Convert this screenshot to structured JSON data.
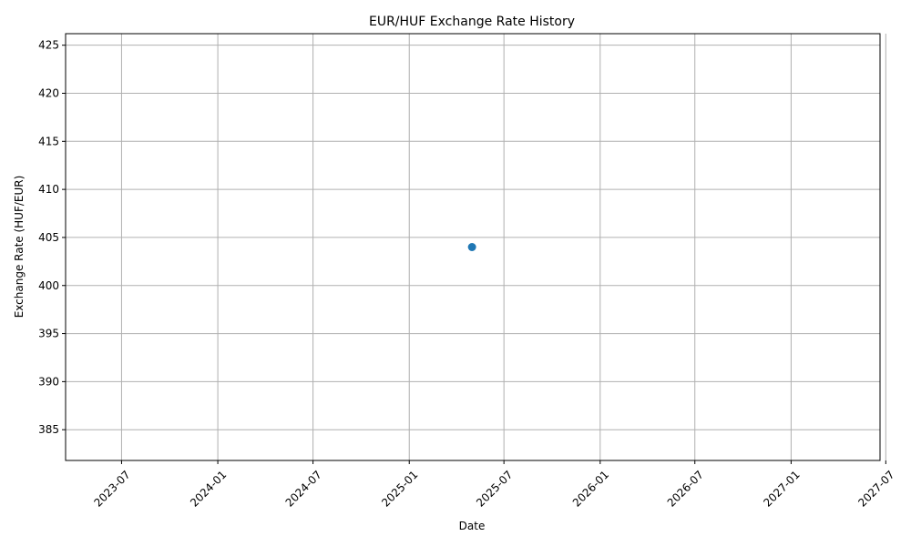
{
  "chart_data": {
    "type": "scatter",
    "title": "EUR/HUF Exchange Rate History",
    "xlabel": "Date",
    "ylabel": "Exchange Rate (HUF/EUR)",
    "x_ticks": [
      "2023-07",
      "2024-01",
      "2024-07",
      "2025-01",
      "2025-07",
      "2026-01",
      "2026-07",
      "2027-01",
      "2027-07"
    ],
    "y_ticks": [
      385,
      390,
      395,
      400,
      405,
      410,
      415,
      420,
      425
    ],
    "xlim": [
      "2023-03-16",
      "2027-06-20"
    ],
    "ylim": [
      381.8,
      426.2
    ],
    "grid": true,
    "marker": "circle",
    "series": [
      {
        "points": [
          {
            "x": "2025-05-01",
            "y": 404.0
          }
        ]
      }
    ],
    "colors": {
      "series": "#1f77b4",
      "grid": "#b0b0b0",
      "axis": "#000000"
    }
  }
}
